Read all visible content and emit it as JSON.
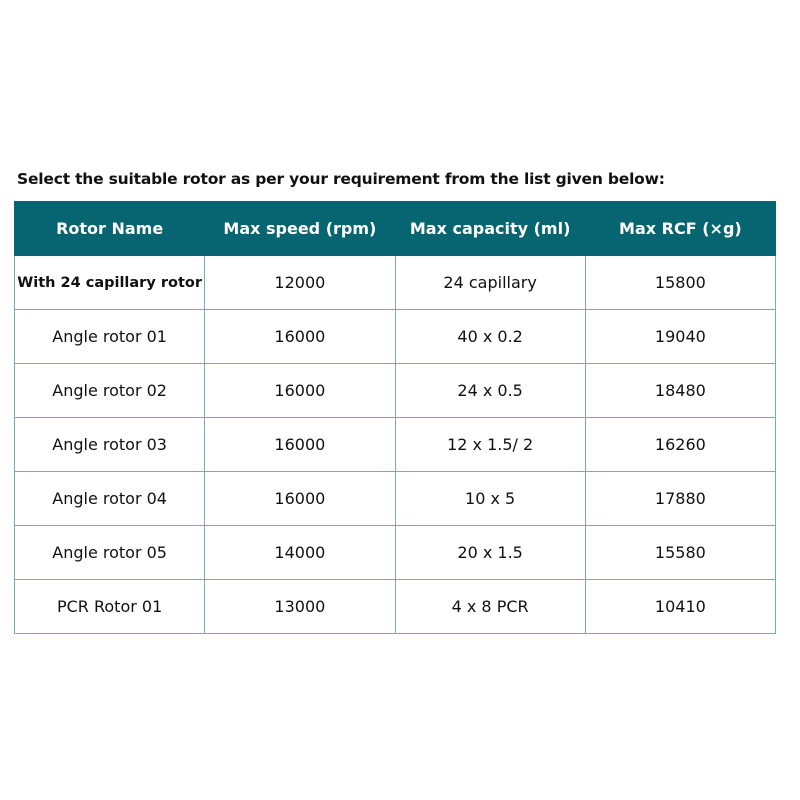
{
  "caption": "Select the suitable rotor as per your requirement from the list given below:",
  "header_color": "#066570",
  "columns": [
    "Rotor Name",
    "Max speed (rpm)",
    "Max capacity (ml)",
    "Max RCF (×g)"
  ],
  "rows": [
    [
      "With 24 capillary rotor",
      "12000",
      "24 capillary",
      "15800"
    ],
    [
      "Angle rotor 01",
      "16000",
      "40 x 0.2",
      "19040"
    ],
    [
      "Angle rotor 02",
      "16000",
      "24 x 0.5",
      "18480"
    ],
    [
      "Angle rotor 03",
      "16000",
      "12 x 1.5/ 2",
      "16260"
    ],
    [
      "Angle rotor 04",
      "16000",
      "10 x 5",
      "17880"
    ],
    [
      "Angle rotor 05",
      "14000",
      "20 x 1.5",
      "15580"
    ],
    [
      "PCR Rotor 01",
      "13000",
      "4 x 8 PCR",
      "10410"
    ]
  ]
}
